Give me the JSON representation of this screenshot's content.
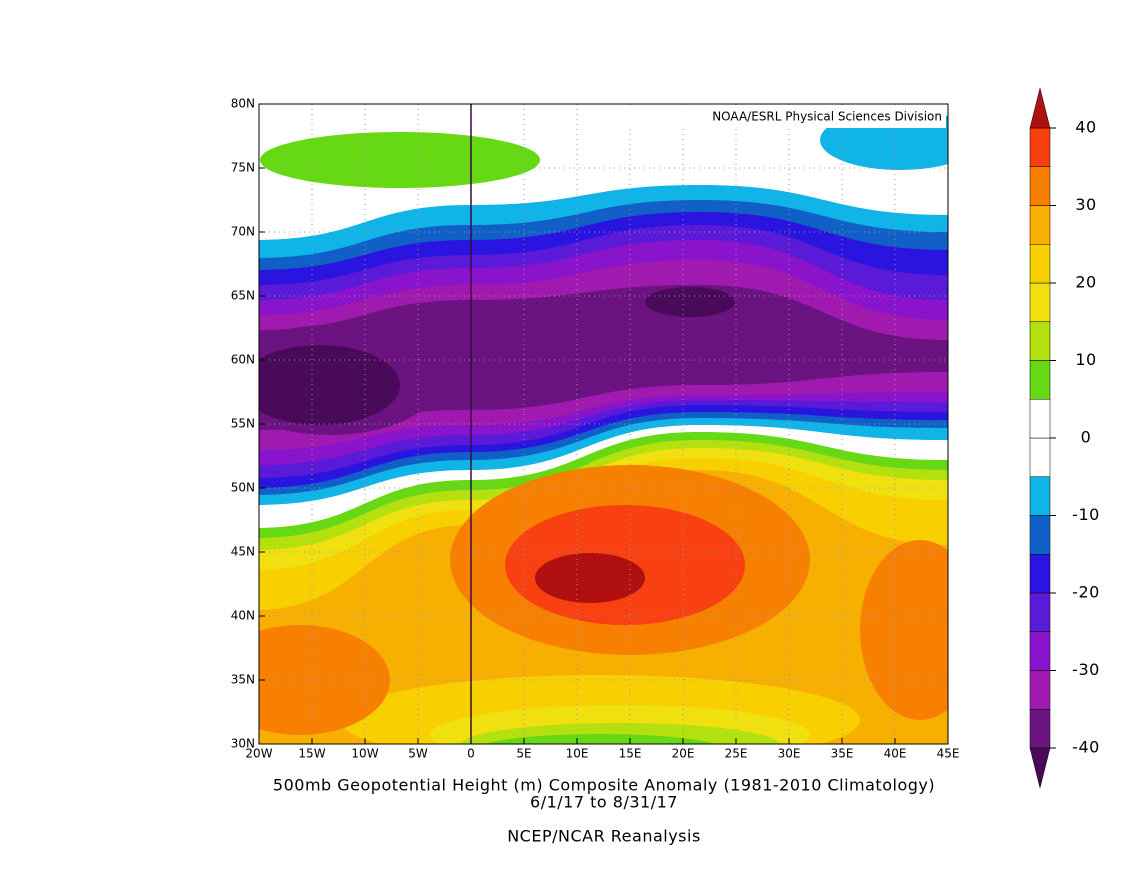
{
  "chart_data": {
    "type": "contour-map",
    "title": "500mb Geopotential Height (m) Composite Anomaly (1981-2010 Climatology)",
    "subtitle": "6/1/17  to 8/31/17",
    "source": "NCEP/NCAR Reanalysis",
    "credit": "NOAA/ESRL Physical Sciences Division",
    "xlim": [
      -20,
      45
    ],
    "ylim": [
      30,
      80
    ],
    "xticks": [
      {
        "value": -20,
        "label": "20W"
      },
      {
        "value": -15,
        "label": "15W"
      },
      {
        "value": -10,
        "label": "10W"
      },
      {
        "value": -5,
        "label": "5W"
      },
      0,
      {
        "value": 5,
        "label": "5E"
      },
      {
        "value": 10,
        "label": "10E"
      },
      {
        "value": 15,
        "label": "15E"
      },
      {
        "value": 20,
        "label": "20E"
      },
      {
        "value": 25,
        "label": "25E"
      },
      {
        "value": 30,
        "label": "30E"
      },
      {
        "value": 35,
        "label": "35E"
      },
      {
        "value": 40,
        "label": "40E"
      },
      {
        "value": 45,
        "label": "45E"
      }
    ],
    "yticks": [
      {
        "value": 30,
        "label": "30N"
      },
      {
        "value": 35,
        "label": "35N"
      },
      {
        "value": 40,
        "label": "40N"
      },
      {
        "value": 45,
        "label": "45N"
      },
      {
        "value": 50,
        "label": "50N"
      },
      {
        "value": 55,
        "label": "55N"
      },
      {
        "value": 60,
        "label": "60N"
      },
      {
        "value": 65,
        "label": "65N"
      },
      {
        "value": 70,
        "label": "70N"
      },
      {
        "value": 75,
        "label": "75N"
      },
      {
        "value": 80,
        "label": "80N"
      }
    ],
    "grid": true,
    "colorbar": {
      "lim": [
        -40,
        40
      ],
      "ticks": [
        -40,
        -30,
        -20,
        -10,
        0,
        10,
        20,
        30,
        40
      ],
      "colors": [
        "#6b1380",
        "#a11ab0",
        "#8a14cc",
        "#5a1ad8",
        "#2a14e0",
        "#1060c8",
        "#10b4e6",
        "#ffffff",
        "#ffffff",
        "#66d814",
        "#b4e010",
        "#f0e010",
        "#f8d000",
        "#f8b000",
        "#f88000",
        "#f84010"
      ],
      "under_color": "#4a0a5a",
      "over_color": "#b01010"
    }
  }
}
